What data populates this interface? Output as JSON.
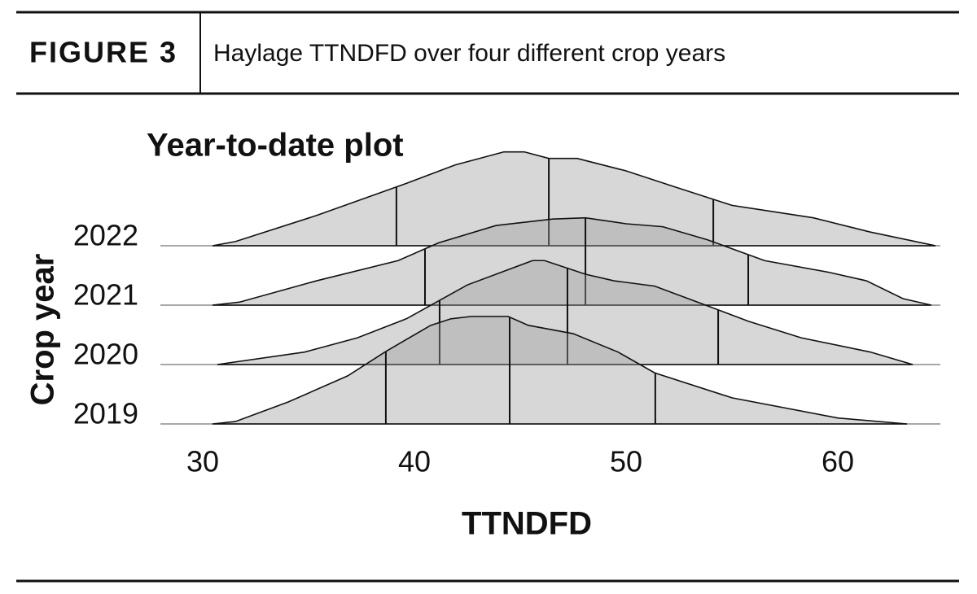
{
  "header": {
    "label": "FIGURE 3",
    "title": "Haylage TTNDFD over four different crop years"
  },
  "chart_data": {
    "type": "ridgeline",
    "title": "Year-to-date plot",
    "x_label": "TTNDFD",
    "y_label": "Crop year",
    "xlim": [
      28,
      65
    ],
    "xticks": [
      30,
      40,
      50,
      60
    ],
    "series": [
      {
        "name": "2022",
        "color": "#9a9a9a",
        "x": [
          30.46,
          31.54,
          35.38,
          39.62,
          41.92,
          44.23,
          45.19,
          46.35,
          47.69,
          50,
          52.31,
          55,
          58.85,
          61.54,
          64.62
        ],
        "values": [
          0,
          0.07,
          0.51,
          1.05,
          1.36,
          1.58,
          1.58,
          1.47,
          1.47,
          1.26,
          0.99,
          0.68,
          0.47,
          0.23,
          0
        ],
        "quantiles": [
          39.15,
          46.35,
          54.12
        ]
      },
      {
        "name": "2021",
        "color": "#9a9a9a",
        "x": [
          30.46,
          31.73,
          35.38,
          39.23,
          41.15,
          43.85,
          46.54,
          48.08,
          50,
          51.73,
          53.85,
          56.54,
          59.62,
          61.35,
          63.08,
          64.42
        ],
        "values": [
          0,
          0.05,
          0.41,
          0.75,
          1.05,
          1.34,
          1.45,
          1.47,
          1.37,
          1.32,
          1.1,
          0.75,
          0.55,
          0.41,
          0.11,
          0
        ],
        "quantiles": [
          40.5,
          48.08,
          55.77
        ]
      },
      {
        "name": "2020",
        "color": "#9a9a9a",
        "x": [
          30.69,
          34.81,
          37.31,
          39.62,
          42.5,
          45.58,
          46.15,
          48.08,
          49.42,
          51.35,
          53.46,
          55.77,
          58.27,
          61.54,
          63.54
        ],
        "values": [
          0,
          0.21,
          0.45,
          0.77,
          1.34,
          1.75,
          1.75,
          1.52,
          1.41,
          1.32,
          1.04,
          0.73,
          0.45,
          0.21,
          0
        ],
        "quantiles": [
          41.19,
          47.23,
          54.35
        ]
      },
      {
        "name": "2019",
        "color": "#9a9a9a",
        "x": [
          30.46,
          31.54,
          34.04,
          36.85,
          38.65,
          40.77,
          41.73,
          42.69,
          44.42,
          45.38,
          47.5,
          49.62,
          51.35,
          55,
          60,
          63.27
        ],
        "values": [
          0,
          0.04,
          0.37,
          0.81,
          1.22,
          1.66,
          1.77,
          1.81,
          1.81,
          1.66,
          1.52,
          1.21,
          0.86,
          0.44,
          0.1,
          0
        ],
        "quantiles": [
          38.65,
          44.5,
          51.38
        ]
      }
    ]
  }
}
